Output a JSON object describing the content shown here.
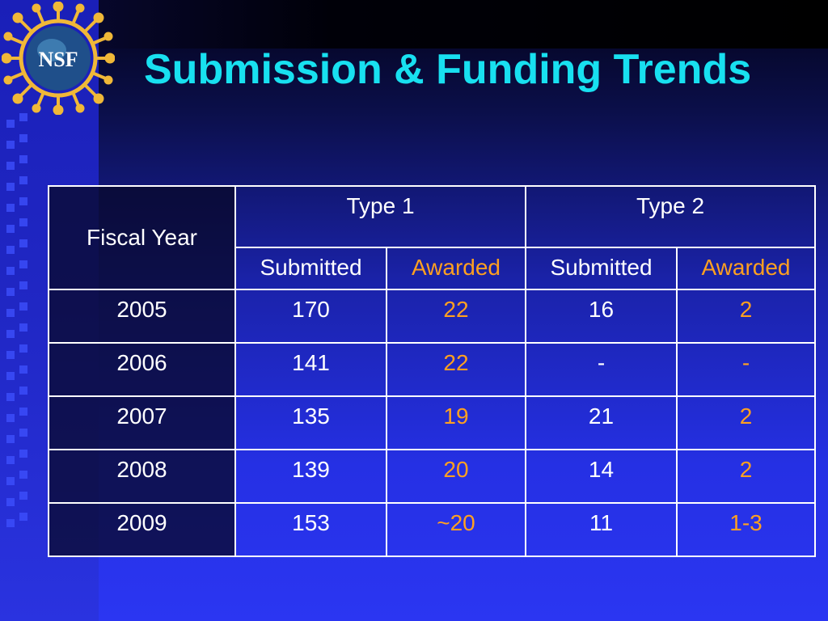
{
  "slide": {
    "title": "Submission & Funding Trends",
    "logo_text": "NSF"
  },
  "table": {
    "col_fiscal_year": "Fiscal Year",
    "groups": [
      "Type 1",
      "Type 2"
    ],
    "subheaders": [
      "Submitted",
      "Awarded",
      "Submitted",
      "Awarded"
    ],
    "rows": [
      {
        "year": "2005",
        "t1_submitted": "170",
        "t1_awarded": "22",
        "t2_submitted": "16",
        "t2_awarded": "2"
      },
      {
        "year": "2006",
        "t1_submitted": "141",
        "t1_awarded": "22",
        "t2_submitted": "-",
        "t2_awarded": "-"
      },
      {
        "year": "2007",
        "t1_submitted": "135",
        "t1_awarded": "19",
        "t2_submitted": "21",
        "t2_awarded": "2"
      },
      {
        "year": "2008",
        "t1_submitted": "139",
        "t1_awarded": "20",
        "t2_submitted": "14",
        "t2_awarded": "2"
      },
      {
        "year": "2009",
        "t1_submitted": "153",
        "t1_awarded": "~20",
        "t2_submitted": "11",
        "t2_awarded": "1-3"
      }
    ]
  },
  "colors": {
    "title": "#18e0f0",
    "awarded": "#ffa020",
    "text": "#ffffff",
    "logo_gold": "#f0b838"
  }
}
